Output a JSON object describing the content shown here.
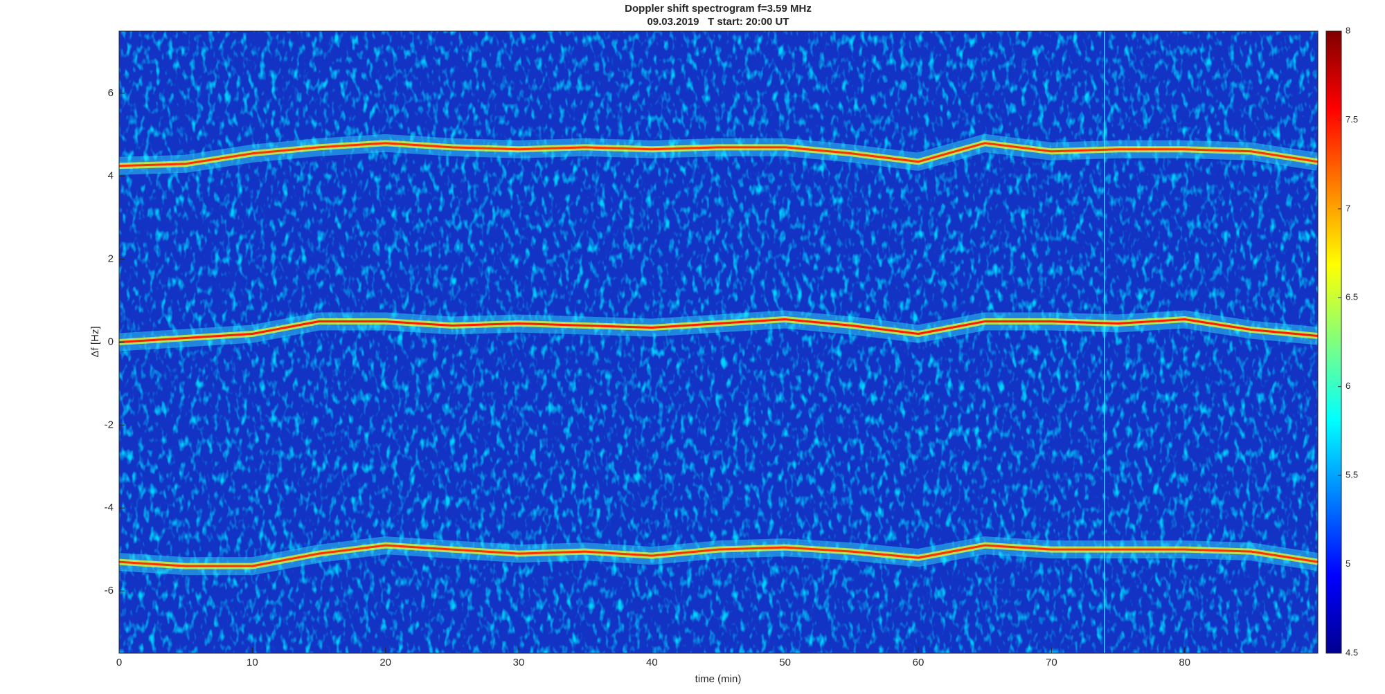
{
  "chart_data": {
    "type": "spectrogram",
    "title": "Doppler shift spectrogram f=3.59 MHz",
    "subtitle": "09.03.2019   T start: 20:00 UT",
    "x_label": "time (min)",
    "y_label": "Δf [Hz]",
    "x": [
      0,
      5,
      10,
      15,
      20,
      25,
      30,
      35,
      40,
      45,
      50,
      55,
      60,
      65,
      70,
      75,
      80,
      85,
      90
    ],
    "series": [
      {
        "color": "#ff3000",
        "values": [
          4.25,
          4.3,
          4.55,
          4.7,
          4.8,
          4.7,
          4.65,
          4.7,
          4.65,
          4.7,
          4.7,
          4.55,
          4.35,
          4.8,
          4.6,
          4.65,
          4.65,
          4.6,
          4.35
        ]
      },
      {
        "color": "#ff1a00",
        "values": [
          0,
          0.1,
          0.2,
          0.5,
          0.5,
          0.4,
          0.45,
          0.4,
          0.35,
          0.45,
          0.55,
          0.4,
          0.2,
          0.5,
          0.5,
          0.45,
          0.55,
          0.3,
          0.15
        ]
      },
      {
        "color": "#ff3000",
        "values": [
          -5.3,
          -5.4,
          -5.4,
          -5.1,
          -4.9,
          -5.0,
          -5.1,
          -5.05,
          -5.15,
          -5.0,
          -4.95,
          -5.05,
          -5.2,
          -4.9,
          -5.0,
          -5.0,
          -5.0,
          -5.05,
          -5.3
        ]
      }
    ],
    "xlim": [
      0,
      90
    ],
    "xticks": [
      0,
      10,
      20,
      30,
      40,
      50,
      60,
      70,
      80
    ],
    "ylim": [
      -7.5,
      7.5
    ],
    "yticks": [
      -6,
      -4,
      -2,
      0,
      2,
      4,
      6
    ],
    "clim": [
      4.5,
      8
    ],
    "cticks": [
      4.5,
      5,
      5.5,
      6,
      6.5,
      7,
      7.5,
      8
    ],
    "colormap": "jet"
  }
}
